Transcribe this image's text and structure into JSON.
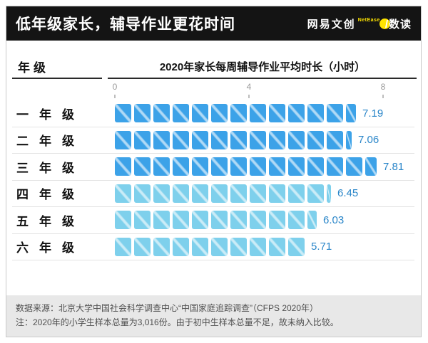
{
  "header": {
    "title": "低年级家长，辅导作业更花时间",
    "logo": {
      "brand": "网易文创",
      "netease": "NetEase",
      "name": "/数读"
    }
  },
  "chart": {
    "col_header": "年级",
    "title": "2020年家长每周辅导作业平均时长（小时）",
    "axis_ticks": [
      "0",
      "4",
      "8"
    ]
  },
  "chart_data": {
    "type": "bar",
    "orientation": "horizontal",
    "style": "segmented-blocks",
    "title": "2020年家长每周辅导作业平均时长（小时）",
    "unit": "小时",
    "categories": [
      "一年级",
      "二年级",
      "三年级",
      "四年级",
      "五年级",
      "六年级"
    ],
    "values": [
      7.19,
      7.06,
      7.81,
      6.45,
      6.03,
      5.71
    ],
    "value_labels": [
      "7.19",
      "7.06",
      "7.81",
      "6.45",
      "6.03",
      "5.71"
    ],
    "xlim": [
      0,
      8
    ],
    "x_ticks": [
      0,
      4,
      8
    ],
    "bar_colors": [
      "#3ca2e8",
      "#3ca2e8",
      "#3ca2e8",
      "#7ed0ec",
      "#7ed0ec",
      "#7ed0ec"
    ],
    "value_color": "#2a86c9",
    "grid": false,
    "legend": false
  },
  "footer": {
    "line1": "数据来源：北京大学中国社会科学调查中心“中国家庭追踪调查”（CFPS 2020年）",
    "line2": "注：2020年的小学生样本总量为3,016份。由于初中生样本总量不足，故未纳入比较。"
  },
  "colors": {
    "accent_yellow": "#ffe400",
    "header_bg": "#141414"
  }
}
